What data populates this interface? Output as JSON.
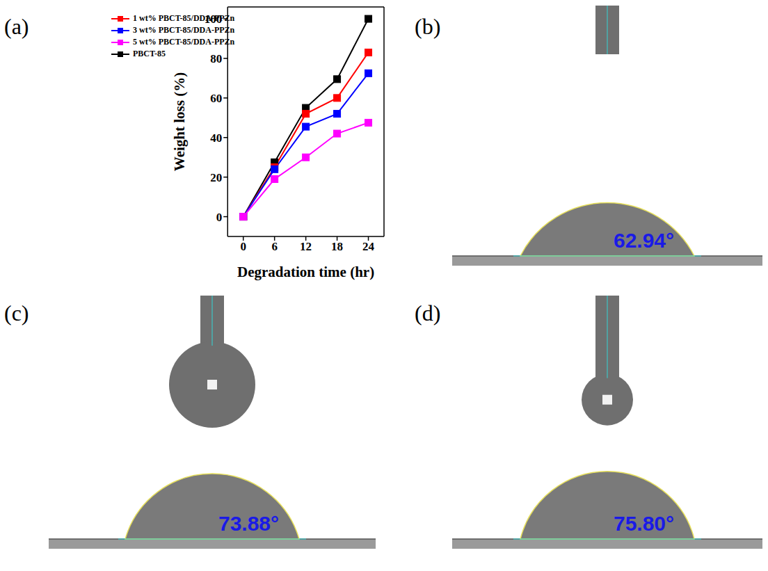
{
  "chart_data": {
    "type": "line",
    "panel": "(a)",
    "x": [
      0,
      6,
      12,
      18,
      24
    ],
    "xlim": [
      -3,
      27
    ],
    "xticks": [
      0,
      6,
      12,
      18,
      24
    ],
    "ylim": [
      -10,
      106
    ],
    "yticks": [
      0,
      20,
      40,
      60,
      80,
      100
    ],
    "x_label": "Degradation time (hr)",
    "y_label": "Weight loss (%)",
    "legend": "upper left",
    "marker": "square",
    "series": [
      {
        "name": "PBCT-85",
        "color": "#000000",
        "values": [
          0,
          27.5,
          55,
          69.5,
          100
        ]
      },
      {
        "name": "1 wt% PBCT-85/DDA-PPZn",
        "color": "#ff0000",
        "values": [
          0,
          25,
          52,
          60,
          83
        ]
      },
      {
        "name": "3 wt% PBCT-85/DDA-PPZn",
        "color": "#0000ff",
        "values": [
          0,
          24,
          45.5,
          52,
          72.5
        ]
      },
      {
        "name": "5 wt% PBCT-85/DDA-PPZn",
        "color": "#ff00ff",
        "values": [
          0,
          19,
          30,
          42,
          47.5
        ]
      }
    ]
  },
  "images": [
    {
      "panel": "(b)",
      "contact_angle": 62.94,
      "label": "62.94°"
    },
    {
      "panel": "(c)",
      "contact_angle": 73.88,
      "label": "73.88°"
    },
    {
      "panel": "(d)",
      "contact_angle": 75.8,
      "label": "75.80°"
    }
  ]
}
